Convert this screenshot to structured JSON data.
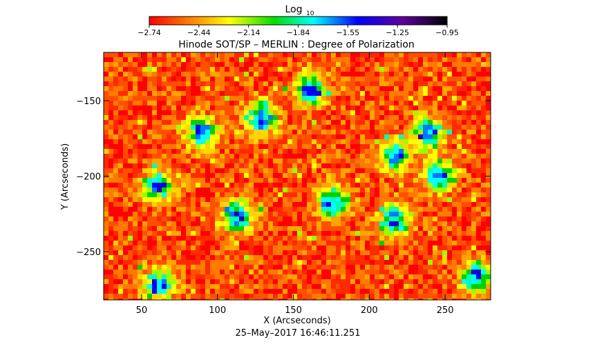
{
  "chart_data": {
    "type": "heatmap",
    "title": "Hinode SOT/SP – MERLIN : Degree of Polarization",
    "colorbar": {
      "label_main": "Log",
      "label_sub": "10",
      "ticks": [
        "−2.74",
        "−2.44",
        "−2.14",
        "−1.84",
        "−1.55",
        "−1.25",
        "−0.95"
      ],
      "range": [
        -2.74,
        -0.95
      ],
      "colormap": "rainbow (red → yellow → green → cyan → blue → purple → black)"
    },
    "x_axis": {
      "label": "X (Arcseconds)",
      "range": [
        25,
        280
      ],
      "ticks": [
        50,
        100,
        150,
        200,
        250
      ],
      "tick_labels": [
        "50",
        "100",
        "150",
        "200",
        "250"
      ]
    },
    "y_axis": {
      "label": "Y (Arcseconds)",
      "range": [
        -282,
        -118
      ],
      "ticks": [
        -150,
        -200,
        -250
      ],
      "tick_labels": [
        "−150",
        "−200",
        "−250"
      ]
    },
    "dominant_value": -2.74,
    "strong_regions_approx": [
      {
        "x": 88,
        "y": -170
      },
      {
        "x": 128,
        "y": -160
      },
      {
        "x": 112,
        "y": -225
      },
      {
        "x": 60,
        "y": -205
      },
      {
        "x": 60,
        "y": -270
      },
      {
        "x": 238,
        "y": -170
      },
      {
        "x": 245,
        "y": -198
      },
      {
        "x": 215,
        "y": -185
      },
      {
        "x": 215,
        "y": -228
      },
      {
        "x": 270,
        "y": -265
      },
      {
        "x": 175,
        "y": -215
      },
      {
        "x": 160,
        "y": -140
      }
    ],
    "date_label": "25–May–2017 16:46:11.251",
    "grid": false
  }
}
